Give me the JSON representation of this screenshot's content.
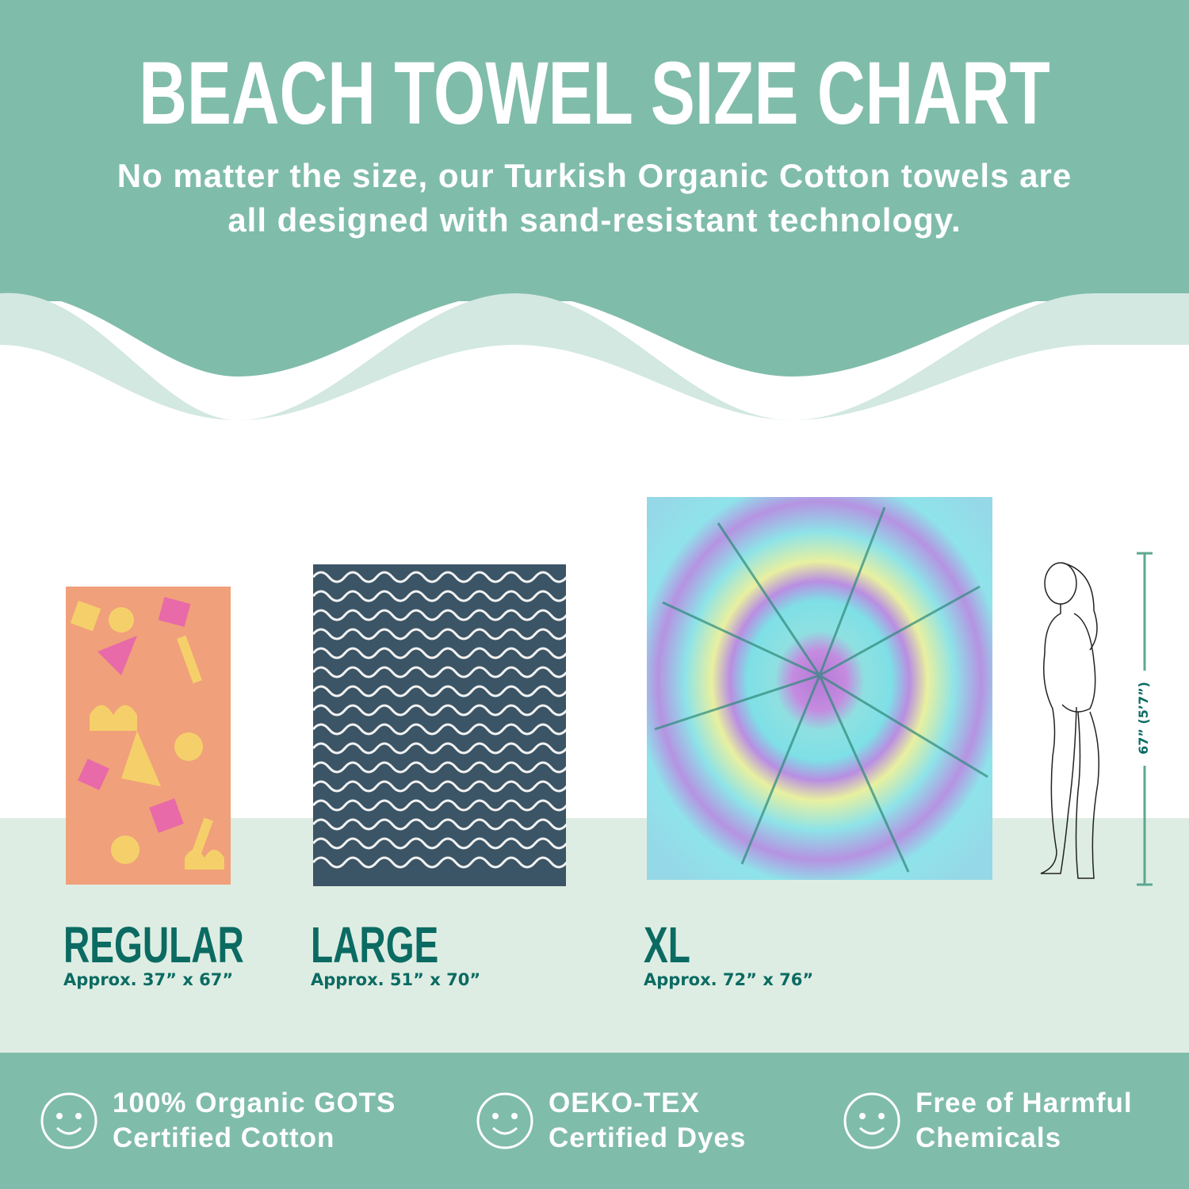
{
  "header": {
    "title": "BEACH TOWEL SIZE CHART",
    "subtitle_line1": "No matter the size, our Turkish Organic Cotton towels are",
    "subtitle_line2": "all designed with sand-resistant technology."
  },
  "sizes": [
    {
      "name": "REGULAR",
      "dimensions": "Approx. 37” x 67”",
      "pattern": "pink-yellow geometric shapes"
    },
    {
      "name": "LARGE",
      "dimensions": "Approx. 51” x 70”",
      "pattern": "navy with white wavy lines"
    },
    {
      "name": "XL",
      "dimensions": "Approx. 72” x 76”",
      "pattern": "tie-dye spiral"
    }
  ],
  "reference": {
    "height_label": "67” (5’7”)"
  },
  "features": [
    {
      "icon": "smiley-icon",
      "line1": "100% Organic GOTS",
      "line2": "Certified Cotton"
    },
    {
      "icon": "smiley-icon",
      "line1": "OEKO-TEX",
      "line2": "Certified Dyes"
    },
    {
      "icon": "smiley-icon",
      "line1": "Free of Harmful",
      "line2": "Chemicals"
    }
  ],
  "colors": {
    "primary_teal": "#80bcaa",
    "light_mint": "#d2e8e0",
    "floor": "#deede3",
    "text_teal": "#0b6b62"
  }
}
